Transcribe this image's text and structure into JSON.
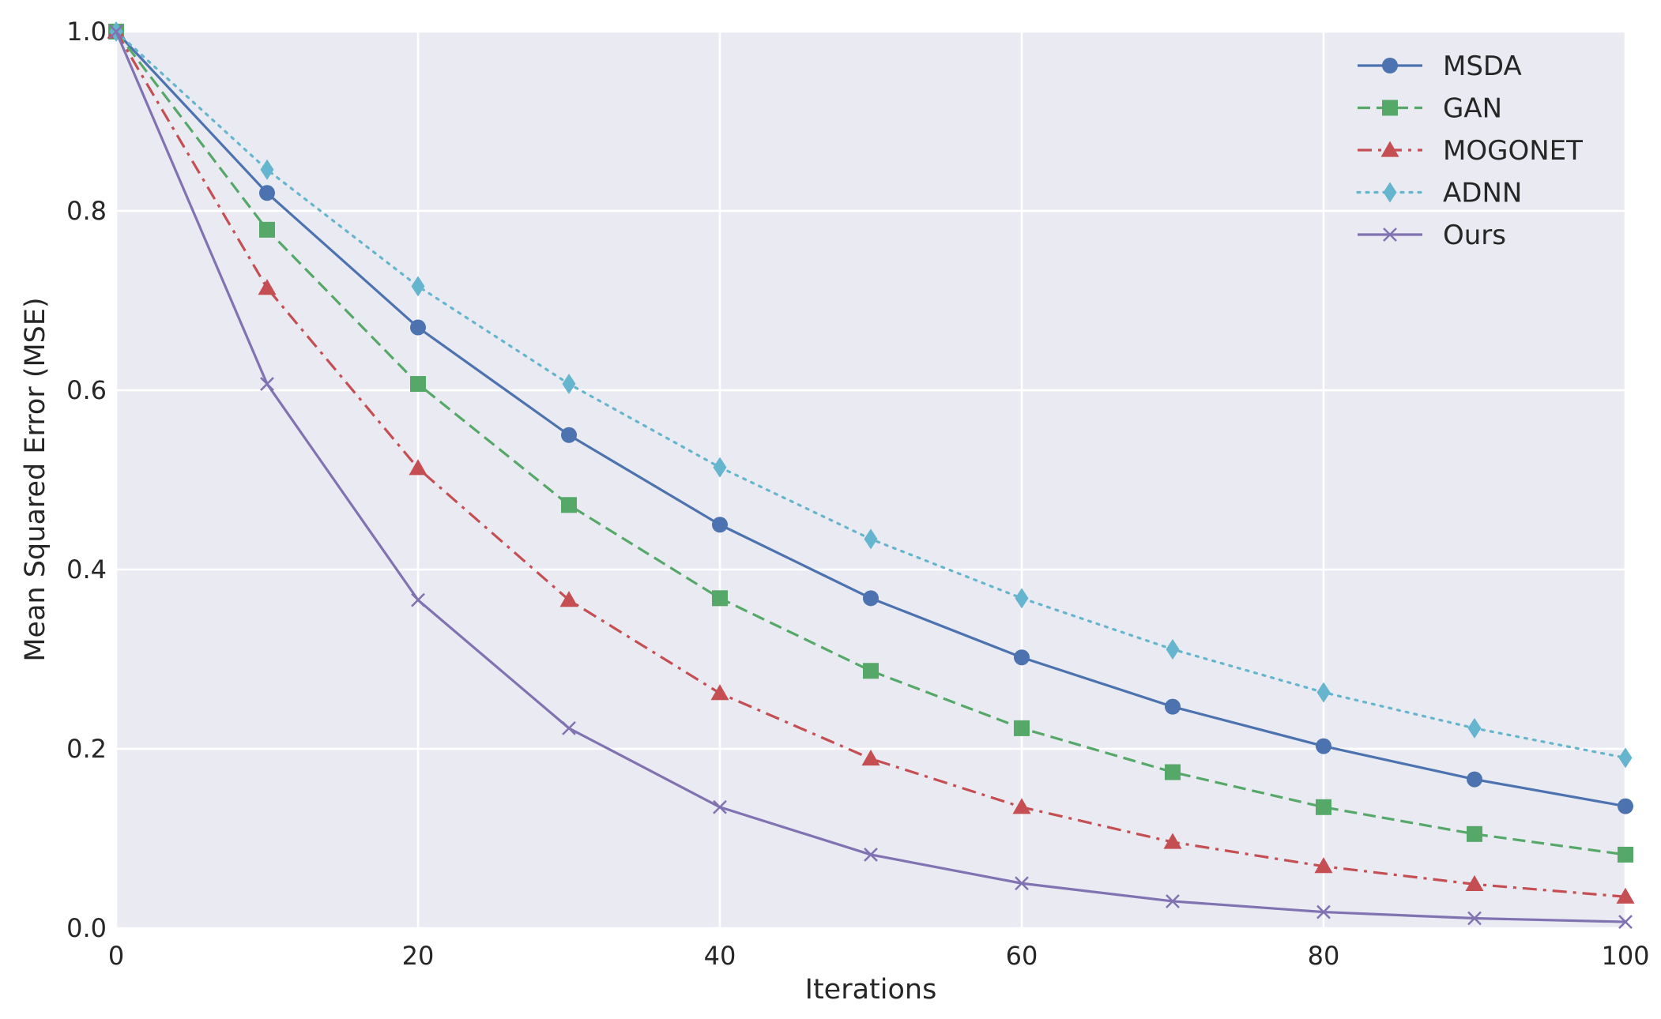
{
  "chart_data": {
    "type": "line",
    "title": "",
    "xlabel": "Iterations",
    "ylabel": "Mean Squared Error (MSE)",
    "xlim": [
      0,
      100
    ],
    "ylim": [
      0.0,
      1.0
    ],
    "xticks": [
      "0",
      "20",
      "40",
      "60",
      "80",
      "100"
    ],
    "yticks": [
      "0.0",
      "0.2",
      "0.4",
      "0.6",
      "0.8",
      "1.0"
    ],
    "grid": true,
    "legend_position": "top-right",
    "x": [
      0,
      10,
      20,
      30,
      40,
      50,
      60,
      70,
      80,
      90,
      100
    ],
    "series": [
      {
        "name": "MSDA",
        "color": "#4c72b0",
        "line_style": "solid",
        "marker": "circle",
        "values": [
          1.0,
          0.82,
          0.67,
          0.55,
          0.45,
          0.368,
          0.302,
          0.247,
          0.203,
          0.166,
          0.136
        ]
      },
      {
        "name": "GAN",
        "color": "#55a868",
        "line_style": "dashed",
        "marker": "square",
        "values": [
          1.0,
          0.779,
          0.607,
          0.472,
          0.368,
          0.287,
          0.223,
          0.174,
          0.135,
          0.105,
          0.082
        ]
      },
      {
        "name": "MOGONET",
        "color": "#c44e52",
        "line_style": "dashdot",
        "marker": "triangle",
        "values": [
          1.0,
          0.714,
          0.513,
          0.366,
          0.262,
          0.189,
          0.135,
          0.096,
          0.069,
          0.049,
          0.035
        ]
      },
      {
        "name": "ADNN",
        "color": "#64b5cd",
        "line_style": "dotted",
        "marker": "diamond",
        "values": [
          1.0,
          0.846,
          0.716,
          0.607,
          0.514,
          0.434,
          0.368,
          0.311,
          0.263,
          0.223,
          0.19
        ]
      },
      {
        "name": "Ours",
        "color": "#8172b2",
        "line_style": "solid",
        "marker": "x",
        "values": [
          1.0,
          0.607,
          0.366,
          0.223,
          0.135,
          0.082,
          0.05,
          0.03,
          0.018,
          0.011,
          0.007
        ]
      }
    ]
  }
}
